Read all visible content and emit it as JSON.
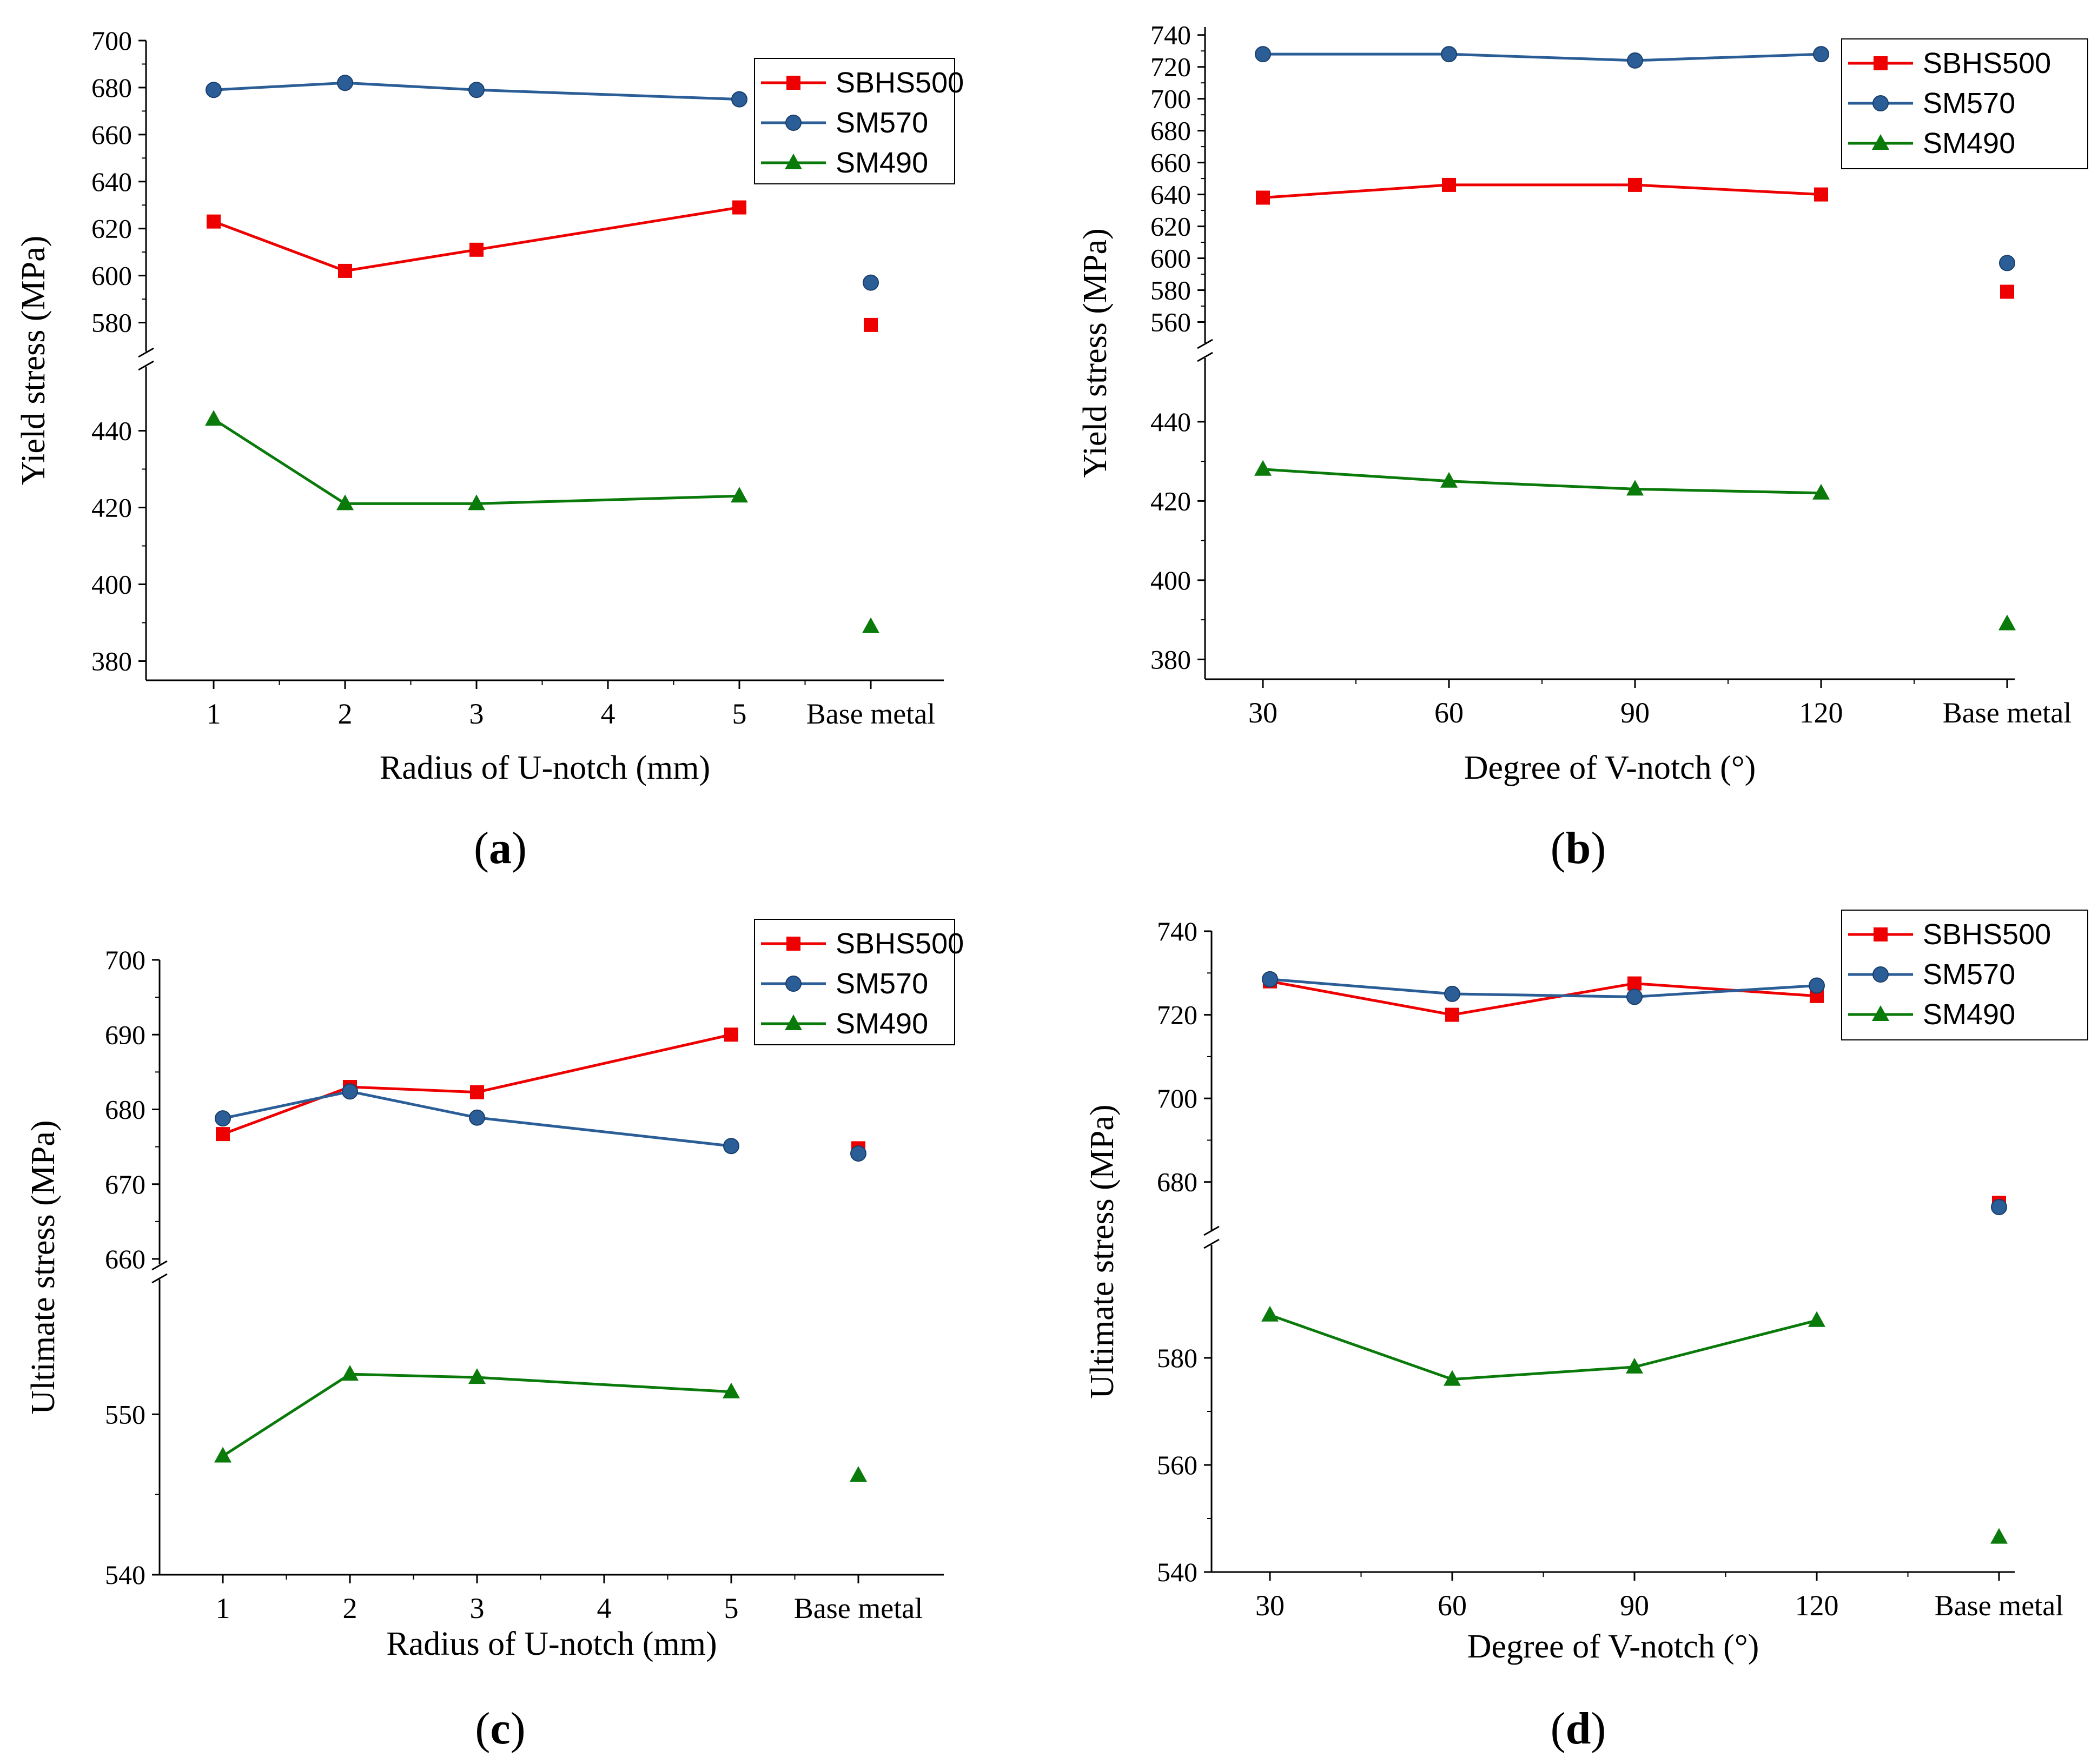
{
  "colors": {
    "sbhs500": "#ee0000",
    "sm570": "#2b5d97",
    "sm490": "#0a7a0a",
    "axis": "#000000"
  },
  "legend": [
    "SBHS500",
    "SM570",
    "SM490"
  ],
  "panels": [
    {
      "text_open": "(",
      "letter": "a",
      "text_close": ")"
    },
    {
      "text_open": "(",
      "letter": "b",
      "text_close": ")"
    },
    {
      "text_open": "(",
      "letter": "c",
      "text_close": ")"
    },
    {
      "text_open": "(",
      "letter": "d",
      "text_close": ")"
    }
  ],
  "chart_data": [
    {
      "id": "a",
      "type": "line",
      "xlabel": "Radius of U-notch (mm)",
      "ylabel": "Yield stress (MPa)",
      "categories": [
        "1",
        "2",
        "3",
        "4",
        "5",
        "Base metal"
      ],
      "upper_ylim": [
        570,
        700
      ],
      "upper_ticks": [
        580,
        600,
        620,
        640,
        660,
        680,
        700
      ],
      "lower_ylim": [
        375,
        455
      ],
      "lower_ticks": [
        380,
        400,
        420,
        440
      ],
      "series": [
        {
          "name": "SBHS500",
          "marker": "square",
          "x": [
            0,
            1,
            2,
            4
          ],
          "values": [
            623,
            602,
            611,
            629
          ],
          "base": 579
        },
        {
          "name": "SM570",
          "marker": "circle",
          "x": [
            0,
            1,
            2,
            4
          ],
          "values": [
            679,
            682,
            679,
            675
          ],
          "base": 597
        },
        {
          "name": "SM490",
          "marker": "triangle",
          "x": [
            0,
            1,
            2,
            4
          ],
          "values": [
            443,
            421,
            421,
            423
          ],
          "base": 389
        }
      ]
    },
    {
      "id": "b",
      "type": "line",
      "xlabel": "Degree of V-notch (°)",
      "ylabel": "Yield stress (MPa)",
      "categories": [
        "30",
        "60",
        "90",
        "120",
        "Base metal"
      ],
      "upper_ylim": [
        550,
        745
      ],
      "upper_ticks": [
        560,
        580,
        600,
        620,
        640,
        660,
        680,
        700,
        720,
        740
      ],
      "lower_ylim": [
        375,
        455
      ],
      "lower_ticks": [
        380,
        400,
        420,
        440
      ],
      "series": [
        {
          "name": "SBHS500",
          "marker": "square",
          "x": [
            0,
            1,
            2,
            3
          ],
          "values": [
            638,
            646,
            646,
            640
          ],
          "base": 579
        },
        {
          "name": "SM570",
          "marker": "circle",
          "x": [
            0,
            1,
            2,
            3
          ],
          "values": [
            728,
            728,
            724,
            728
          ],
          "base": 597
        },
        {
          "name": "SM490",
          "marker": "triangle",
          "x": [
            0,
            1,
            2,
            3
          ],
          "values": [
            428,
            425,
            423,
            422
          ],
          "base": 389
        }
      ]
    },
    {
      "id": "c",
      "type": "line",
      "xlabel": "Radius of U-notch (mm)",
      "ylabel": "Ultimate stress (MPa)",
      "categories": [
        "1",
        "2",
        "3",
        "4",
        "5",
        "Base metal"
      ],
      "upper_ylim": [
        660,
        700
      ],
      "upper_ticks": [
        660,
        670,
        680,
        690,
        700
      ],
      "lower_ylim": [
        540,
        558
      ],
      "lower_ticks": [
        540,
        550
      ],
      "series": [
        {
          "name": "SBHS500",
          "marker": "square",
          "x": [
            0,
            1,
            2,
            4
          ],
          "values": [
            676.7,
            683,
            682.3,
            690
          ],
          "base": 674.8
        },
        {
          "name": "SM570",
          "marker": "circle",
          "x": [
            0,
            1,
            2,
            4
          ],
          "values": [
            678.8,
            682.4,
            678.9,
            675.1
          ],
          "base": 674.1
        },
        {
          "name": "SM490",
          "marker": "triangle",
          "x": [
            0,
            1,
            2,
            4
          ],
          "values": [
            547.4,
            552.5,
            552.3,
            551.4
          ],
          "base": 546.2
        }
      ]
    },
    {
      "id": "d",
      "type": "line",
      "xlabel": "Degree of V-notch (°)",
      "ylabel": "Ultimate stress (MPa)",
      "categories": [
        "30",
        "60",
        "90",
        "120",
        "Base metal"
      ],
      "upper_ylim": [
        670,
        740
      ],
      "upper_ticks": [
        680,
        700,
        720,
        740
      ],
      "lower_ylim": [
        540,
        600
      ],
      "lower_ticks": [
        540,
        560,
        580
      ],
      "series": [
        {
          "name": "SBHS500",
          "marker": "square",
          "x": [
            0,
            1,
            2,
            3
          ],
          "values": [
            728,
            720,
            727.5,
            724.5
          ],
          "base": 675
        },
        {
          "name": "SM570",
          "marker": "circle",
          "x": [
            0,
            1,
            2,
            3
          ],
          "values": [
            728.5,
            725,
            724.3,
            727
          ],
          "base": 674
        },
        {
          "name": "SM490",
          "marker": "triangle",
          "x": [
            0,
            1,
            2,
            3
          ],
          "values": [
            588,
            576,
            578.3,
            587
          ],
          "base": 546.5
        }
      ]
    }
  ]
}
